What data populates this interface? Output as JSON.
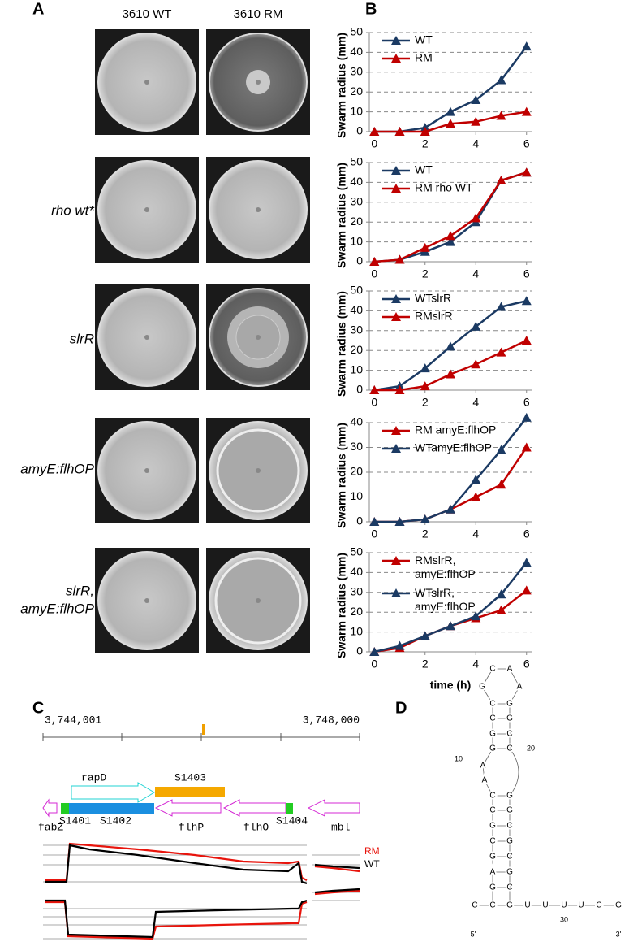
{
  "panel_labels": [
    "A",
    "B",
    "C",
    "D"
  ],
  "panel_a": {
    "columns": [
      "3610 WT",
      "3610 RM"
    ],
    "rows": [
      [
        "rho wt*"
      ],
      [
        "slrR"
      ],
      [
        "amyE:flhOP"
      ],
      [
        "slrR,",
        "amyE:flhOP"
      ]
    ]
  },
  "chart_data": [
    {
      "type": "line",
      "y_label": "Swarm radius (mm)",
      "x": [
        0,
        1,
        2,
        3,
        4,
        5,
        6
      ],
      "xlim": [
        -0.2,
        6.2
      ],
      "xticks": [
        0,
        2,
        4,
        6
      ],
      "ylim": [
        0,
        50
      ],
      "yticks": [
        0,
        10,
        20,
        30,
        40,
        50
      ],
      "grid": true,
      "legend": "upper left",
      "series": [
        {
          "name": "WT",
          "color": "#1b3a63",
          "values": [
            0,
            0,
            2,
            10,
            16,
            26,
            43
          ]
        },
        {
          "name": "RM",
          "color": "#c00000",
          "values": [
            0,
            0,
            0,
            4,
            5,
            8,
            10
          ]
        }
      ]
    },
    {
      "type": "line",
      "y_label": "Swarm radius (mm)",
      "x": [
        0,
        1,
        2,
        3,
        4,
        5,
        6
      ],
      "xlim": [
        -0.2,
        6.2
      ],
      "xticks": [
        0,
        2,
        4,
        6
      ],
      "ylim": [
        0,
        50
      ],
      "yticks": [
        0,
        10,
        20,
        30,
        40,
        50
      ],
      "grid": true,
      "legend": "upper left",
      "series": [
        {
          "name": "WT",
          "color": "#1b3a63",
          "values": [
            0,
            1,
            5,
            10,
            20,
            41,
            45
          ]
        },
        {
          "name": "RM rho WT",
          "color": "#c00000",
          "values": [
            0,
            1,
            7,
            13,
            22,
            41,
            45
          ]
        }
      ]
    },
    {
      "type": "line",
      "y_label": "Swarm radius (mm)",
      "x": [
        0,
        1,
        2,
        3,
        4,
        5,
        6
      ],
      "xlim": [
        -0.2,
        6.2
      ],
      "xticks": [
        0,
        2,
        4,
        6
      ],
      "ylim": [
        0,
        50
      ],
      "yticks": [
        0,
        10,
        20,
        30,
        40,
        50
      ],
      "grid": true,
      "legend": "upper left",
      "series": [
        {
          "name": "WTslrR",
          "color": "#1b3a63",
          "values": [
            0,
            2,
            11,
            22,
            32,
            42,
            45
          ]
        },
        {
          "name": "RMslrR",
          "color": "#c00000",
          "values": [
            0,
            0,
            2,
            8,
            13,
            19,
            25
          ]
        }
      ]
    },
    {
      "type": "line",
      "y_label": "Swarm radius (mm)",
      "x": [
        0,
        1,
        2,
        3,
        4,
        5,
        6
      ],
      "xlim": [
        -0.2,
        6.2
      ],
      "xticks": [
        0,
        2,
        4,
        6
      ],
      "ylim": [
        0,
        40
      ],
      "yticks": [
        0,
        10,
        20,
        30,
        40
      ],
      "grid": true,
      "legend": "upper left",
      "series": [
        {
          "name": "RM amyE:flhOP",
          "color": "#c00000",
          "values": [
            0,
            0,
            1,
            5,
            10,
            15,
            30
          ]
        },
        {
          "name": "WTamyE:flhOP",
          "color": "#1b3a63",
          "values": [
            0,
            0,
            1,
            5,
            17,
            29,
            42
          ]
        }
      ]
    },
    {
      "type": "line",
      "y_label": "Swarm radius (mm)",
      "x_label": "time (h)",
      "x": [
        0,
        1,
        2,
        3,
        4,
        5,
        6
      ],
      "xlim": [
        -0.2,
        6.2
      ],
      "xticks": [
        0,
        2,
        4,
        6
      ],
      "ylim": [
        0,
        50
      ],
      "yticks": [
        0,
        10,
        20,
        30,
        40,
        50
      ],
      "grid": true,
      "legend": "upper left",
      "series": [
        {
          "name": "RMslrR, amyE:flhOP",
          "color": "#c00000",
          "values": [
            0,
            2,
            8,
            13,
            17,
            21,
            31
          ]
        },
        {
          "name": "WTslrR, amyE:flhOP",
          "color": "#1b3a63",
          "values": [
            0,
            3,
            8,
            13,
            18,
            29,
            45
          ]
        }
      ]
    }
  ],
  "panel_c": {
    "start": "3,744,001",
    "end": "3,748,000",
    "genes": [
      "rapD",
      "S1403",
      "fabZ",
      "S1401",
      "S1402",
      "flhP",
      "flhO",
      "S1404",
      "mbl"
    ],
    "tracks": [
      "RM",
      "WT"
    ]
  },
  "panel_d": {
    "nucleotides": [
      "C",
      "C",
      "G",
      "A",
      "G",
      "C",
      "G",
      "C",
      "C",
      "A",
      "A",
      "G",
      "G",
      "C",
      "C",
      "G",
      "C",
      "A",
      "A",
      "G",
      "G",
      "C",
      "C",
      "G",
      "G",
      "C",
      "G",
      "C",
      "G",
      "C",
      "G",
      "U",
      "U",
      "U",
      "U",
      "C",
      "G"
    ],
    "numbers": [
      "10",
      "20",
      "30"
    ],
    "ends": [
      "5'",
      "3'"
    ]
  }
}
